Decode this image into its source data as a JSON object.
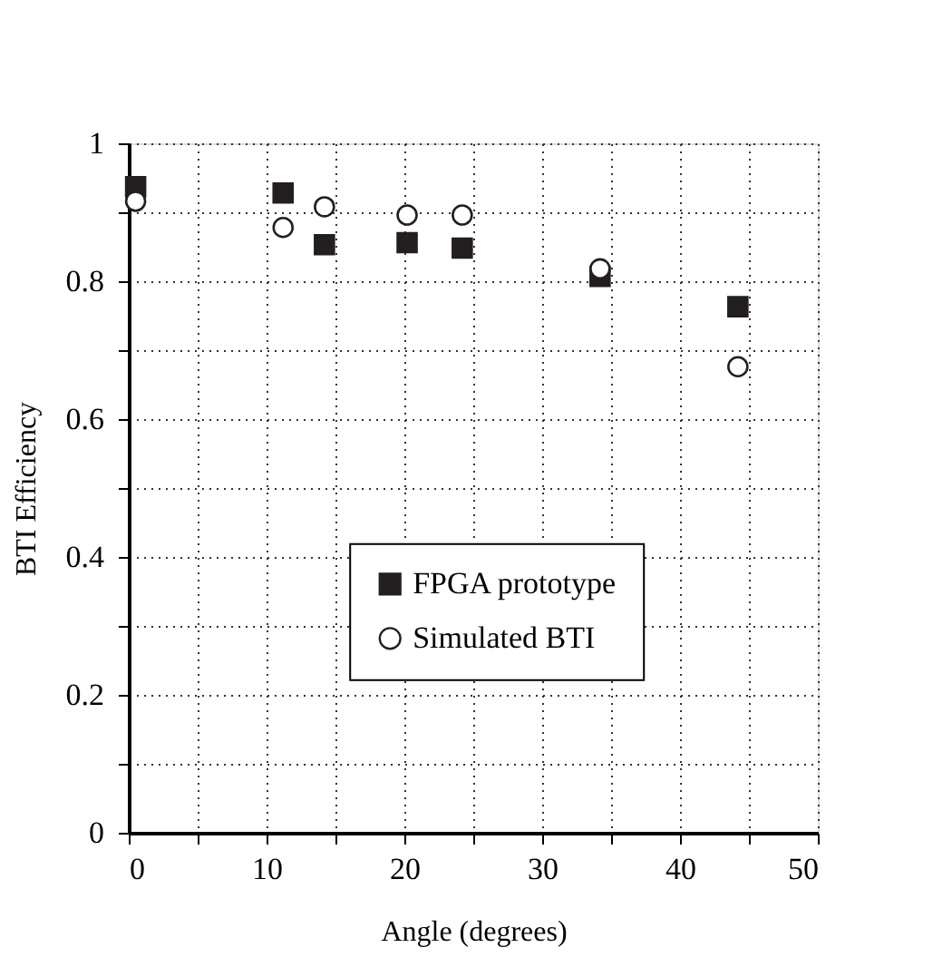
{
  "chart_data": {
    "type": "scatter",
    "xlabel": "Angle (degrees)",
    "ylabel": "BTI Efficiency",
    "x": [
      0.5,
      11.2,
      14.2,
      20.2,
      24.2,
      34.2,
      44.2
    ],
    "series": [
      {
        "name": "FPGA prototype",
        "color": "#231f20",
        "marker": "square",
        "values": [
          0.937,
          0.928,
          0.853,
          0.856,
          0.848,
          0.807,
          0.763
        ]
      },
      {
        "name": "Simulated BTI",
        "color": "#231f20",
        "marker": "circle",
        "values": [
          0.916,
          0.878,
          0.908,
          0.896,
          0.896,
          0.818,
          0.676
        ]
      }
    ],
    "xlim": [
      0,
      50
    ],
    "ylim": [
      0,
      1
    ],
    "xticks": [
      0,
      {
        "value": 5,
        "label": null
      },
      10,
      {
        "value": 15,
        "label": null
      },
      20,
      {
        "value": 25,
        "label": null
      },
      30,
      {
        "value": 35,
        "label": null
      },
      40,
      {
        "value": 45,
        "label": null
      },
      50
    ],
    "yticks": [
      0,
      {
        "value": 0.1,
        "label": null
      },
      {
        "value": 0.2,
        "label": "0.2"
      },
      {
        "value": 0.3,
        "label": null
      },
      {
        "value": 0.4,
        "label": "0.4"
      },
      {
        "value": 0.5,
        "label": null
      },
      {
        "value": 0.6,
        "label": "0.6"
      },
      {
        "value": 0.7,
        "label": null
      },
      {
        "value": 0.8,
        "label": "0.8"
      },
      {
        "value": 0.9,
        "label": null
      },
      1
    ],
    "grid": true,
    "legend": "right"
  }
}
